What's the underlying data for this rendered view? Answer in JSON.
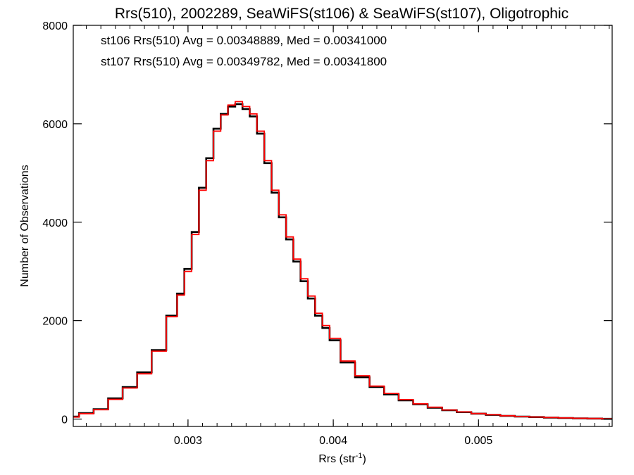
{
  "chart_data": {
    "type": "line",
    "title": "Rrs(510), 2002289, SeaWiFS(st106) & SeaWiFS(st107), Oligotrophic",
    "xlabel": "Rrs (str",
    "xlabel_sup": "-1",
    "xlabel_suffix": ")",
    "ylabel": "Number of Observations",
    "xlim": [
      0.00221,
      0.00592
    ],
    "ylim": [
      -150,
      8000
    ],
    "xticks": [
      0.003,
      0.004,
      0.005
    ],
    "xtick_labels": [
      "0.003",
      "0.004",
      "0.005"
    ],
    "yticks": [
      0,
      2000,
      4000,
      6000,
      8000
    ],
    "ytick_labels": [
      "0",
      "2000",
      "4000",
      "6000",
      "8000"
    ],
    "grid": false,
    "legend_position": "top-left",
    "annotations": [
      {
        "text": "st106 Rrs(510) Avg = 0.00348889, Med = 0.00341000",
        "color": "#000000"
      },
      {
        "text": "st107 Rrs(510) Avg = 0.00349782, Med = 0.00341800",
        "color": "#ff0000"
      }
    ],
    "series": [
      {
        "name": "st106",
        "color": "#000000",
        "x": [
          0.0022,
          0.0023,
          0.0024,
          0.0025,
          0.0026,
          0.0027,
          0.0028,
          0.0029,
          0.00295,
          0.003,
          0.00305,
          0.0031,
          0.00315,
          0.0032,
          0.00325,
          0.0033,
          0.00335,
          0.0034,
          0.00345,
          0.0035,
          0.00355,
          0.0036,
          0.00365,
          0.0037,
          0.00375,
          0.0038,
          0.00385,
          0.0039,
          0.00395,
          0.004,
          0.0041,
          0.0042,
          0.0043,
          0.0044,
          0.0045,
          0.0046,
          0.0047,
          0.0048,
          0.0049,
          0.005,
          0.0051,
          0.0052,
          0.0053,
          0.0054,
          0.0055,
          0.0056,
          0.0057,
          0.0058,
          0.0059
        ],
        "values": [
          50,
          120,
          200,
          420,
          650,
          950,
          1400,
          2100,
          2550,
          3050,
          3800,
          4700,
          5300,
          5900,
          6200,
          6350,
          6400,
          6300,
          6150,
          5800,
          5200,
          4600,
          4100,
          3650,
          3200,
          2800,
          2450,
          2100,
          1850,
          1600,
          1150,
          850,
          650,
          500,
          380,
          300,
          230,
          180,
          140,
          110,
          85,
          65,
          50,
          40,
          30,
          22,
          15,
          10,
          5
        ]
      },
      {
        "name": "st107",
        "color": "#ff0000",
        "x": [
          0.0022,
          0.0023,
          0.0024,
          0.0025,
          0.0026,
          0.0027,
          0.0028,
          0.0029,
          0.00295,
          0.003,
          0.00305,
          0.0031,
          0.00315,
          0.0032,
          0.00325,
          0.0033,
          0.00335,
          0.0034,
          0.00345,
          0.0035,
          0.00355,
          0.0036,
          0.00365,
          0.0037,
          0.00375,
          0.0038,
          0.00385,
          0.0039,
          0.00395,
          0.004,
          0.0041,
          0.0042,
          0.0043,
          0.0044,
          0.0045,
          0.0046,
          0.0047,
          0.0048,
          0.0049,
          0.005,
          0.0051,
          0.0052,
          0.0053,
          0.0054,
          0.0055,
          0.0056,
          0.0057,
          0.0058,
          0.0059
        ],
        "values": [
          40,
          110,
          190,
          400,
          630,
          920,
          1380,
          2080,
          2520,
          3000,
          3750,
          4650,
          5250,
          5850,
          6180,
          6380,
          6450,
          6350,
          6200,
          5850,
          5250,
          4650,
          4150,
          3700,
          3250,
          2850,
          2500,
          2150,
          1900,
          1640,
          1180,
          880,
          670,
          520,
          395,
          310,
          240,
          185,
          145,
          112,
          88,
          67,
          52,
          41,
          31,
          23,
          16,
          11,
          6
        ]
      }
    ]
  }
}
